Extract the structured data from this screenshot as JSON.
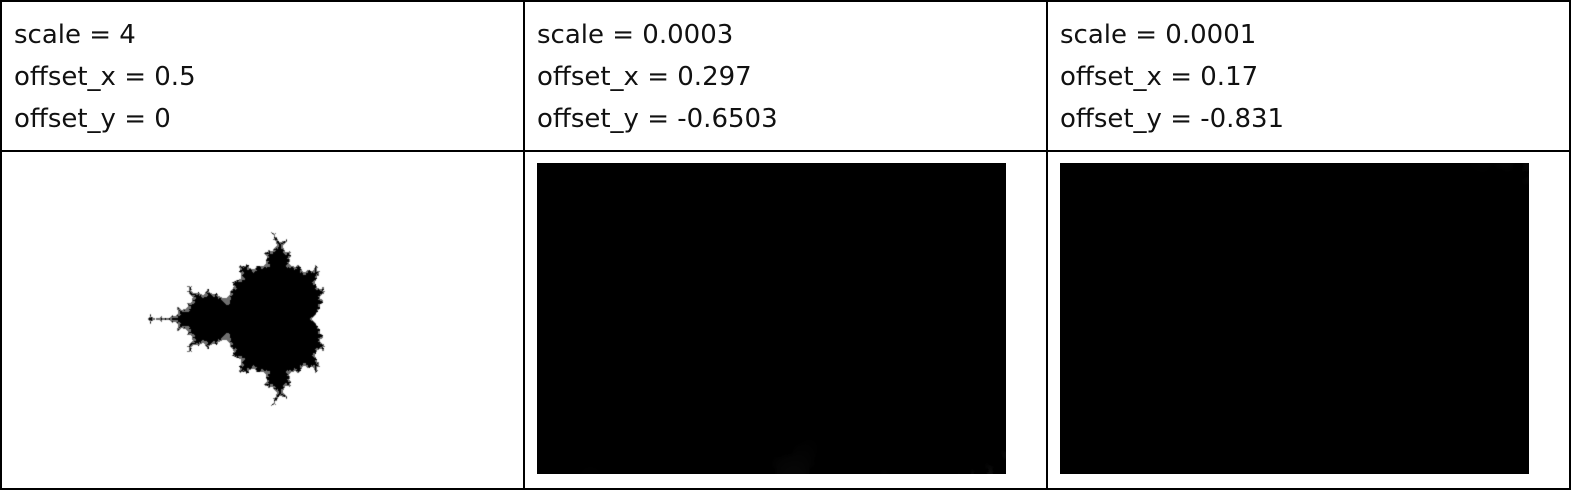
{
  "panels": [
    {
      "scale_text": "scale = 4",
      "offset_x_text": "offset_x = 0.5",
      "offset_y_text": "offset_y = 0",
      "scale": 4,
      "offset_x": 0.5,
      "offset_y": 0
    },
    {
      "scale_text": "scale = 0.0003",
      "offset_x_text": "offset_x = 0.297",
      "offset_y_text": "offset_y = -0.6503",
      "scale": 0.0003,
      "offset_x": 0.297,
      "offset_y": -0.6503
    },
    {
      "scale_text": "scale = 0.0001",
      "offset_x_text": "offset_x = 0.17",
      "offset_y_text": "offset_y = -0.831",
      "scale": 0.0001,
      "offset_x": 0.17,
      "offset_y": -0.831
    }
  ]
}
